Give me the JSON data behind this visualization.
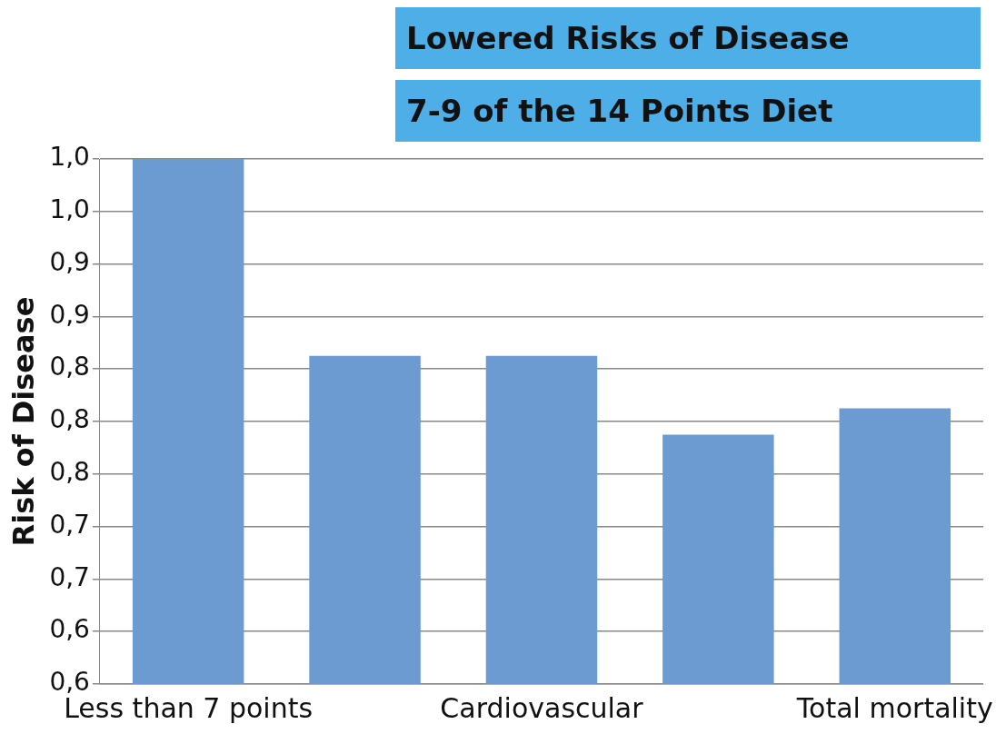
{
  "chart_data": {
    "type": "bar",
    "title": "Lowered Risks of Disease",
    "ylabel": "Risk of Disease",
    "annotations": [
      "7-9 of the 14 Points Diet"
    ],
    "categories": [
      "Less than 7 points",
      null,
      "Cardiovascular",
      null,
      "Total mortality"
    ],
    "values": [
      1.0,
      0.85,
      0.85,
      0.79,
      0.81
    ],
    "color": "#6b9bd1",
    "ylim": [
      0.6,
      1.0
    ],
    "yticks": [
      {
        "value": 0.6,
        "label": "0,6"
      },
      {
        "value": 0.64,
        "label": "0,6"
      },
      {
        "value": 0.68,
        "label": "0,7"
      },
      {
        "value": 0.72,
        "label": "0,7"
      },
      {
        "value": 0.76,
        "label": "0,8"
      },
      {
        "value": 0.8,
        "label": "0,8"
      },
      {
        "value": 0.84,
        "label": "0,8"
      },
      {
        "value": 0.88,
        "label": "0,9"
      },
      {
        "value": 0.92,
        "label": "0,9"
      },
      {
        "value": 0.96,
        "label": "1,0"
      },
      {
        "value": 1.0,
        "label": "1,0"
      }
    ],
    "grid": "y",
    "legend": false
  }
}
